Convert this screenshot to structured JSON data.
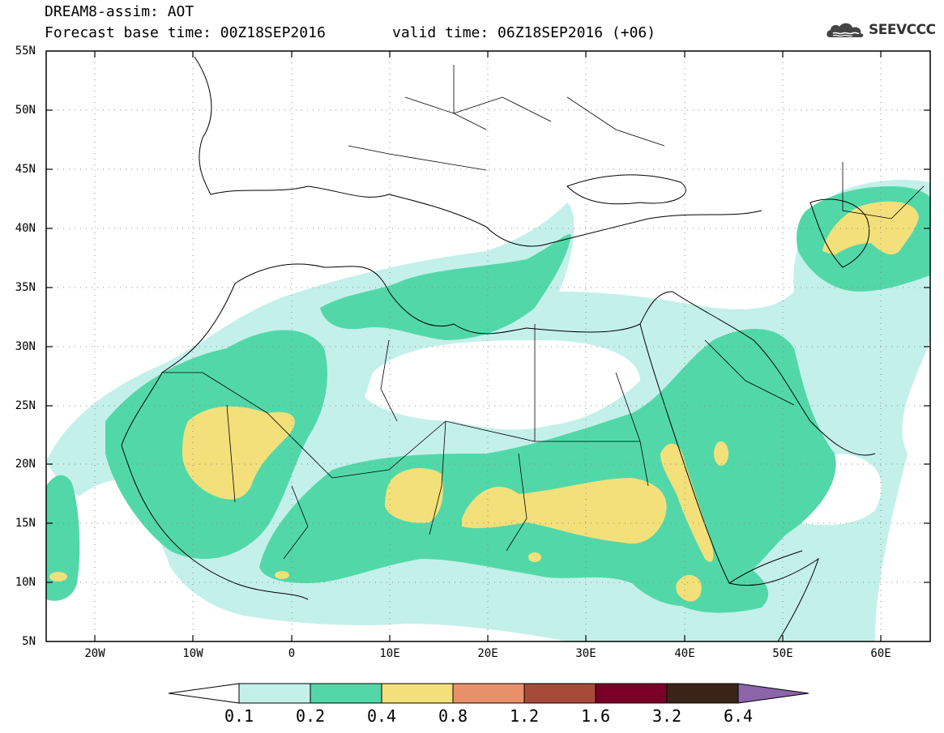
{
  "header": {
    "model_title": "DREAM8-assim: AOT",
    "base_time": "Forecast base time: 00Z18SEP2016",
    "valid_time": "valid time: 06Z18SEP2016 (+06)",
    "logo_text": "SEEVCCC"
  },
  "map": {
    "lon_range": [
      -25,
      65
    ],
    "lat_range": [
      5,
      55
    ],
    "lat_labels": [
      "55N",
      "50N",
      "45N",
      "40N",
      "35N",
      "30N",
      "25N",
      "20N",
      "15N",
      "10N",
      "5N"
    ],
    "lon_labels": [
      "20W",
      "10W",
      "0",
      "10E",
      "20E",
      "30E",
      "40E",
      "50E",
      "60E"
    ],
    "gridlines": "dotted"
  },
  "colorbar": {
    "labels": [
      "0.1",
      "0.2",
      "0.4",
      "0.8",
      "1.2",
      "1.6",
      "3.2",
      "6.4"
    ],
    "colors": [
      "#ffffff",
      "#c4f0ea",
      "#52d8a8",
      "#f4e07a",
      "#e8906a",
      "#a84a3a",
      "#7a0028",
      "#3a2418",
      "#8c64aa"
    ]
  },
  "palette": {
    "level_02": "#c4f0ea",
    "level_04": "#52d8a8",
    "level_08": "#f4e07a"
  }
}
